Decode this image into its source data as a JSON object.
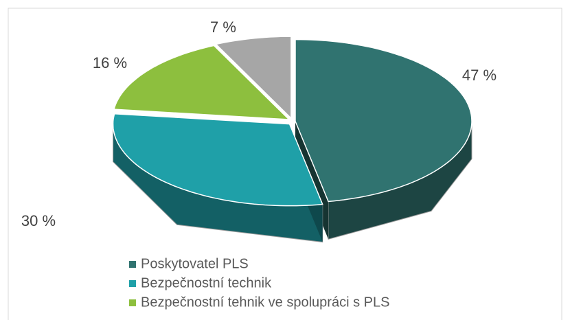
{
  "chart_data": {
    "type": "pie",
    "categories": [
      "Poskytovatel PLS",
      "Bezpečnostní technik",
      "Bezpečnostní tehnik ve spolupráci s PLS",
      null
    ],
    "values": [
      47,
      30,
      16,
      7
    ],
    "value_labels": [
      "47 %",
      "30 %",
      "16 %",
      "7 %"
    ],
    "colors": [
      "#307370",
      "#1fa0a8",
      "#8dbf3e",
      "#a6a6a6"
    ],
    "legend": "bottom"
  }
}
